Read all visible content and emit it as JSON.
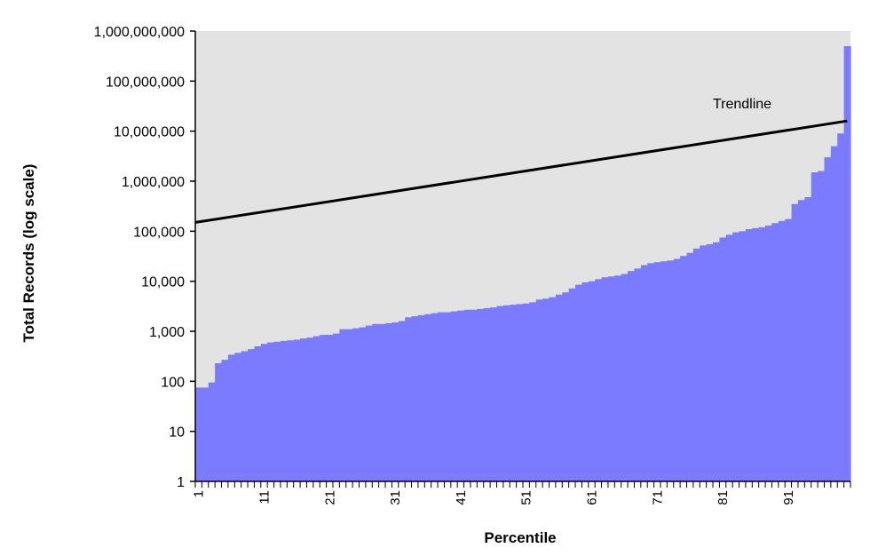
{
  "chart_data": {
    "type": "bar",
    "title": "",
    "xlabel": "Percentile",
    "ylabel": "Total Records (log scale)",
    "y_scale": "log",
    "ylim": [
      1,
      1000000000
    ],
    "y_ticks": [
      "1",
      "10",
      "100",
      "1,000",
      "10,000",
      "100,000",
      "1,000,000",
      "10,000,000",
      "100,000,000",
      "1,000,000,000"
    ],
    "x_ticks": [
      "1",
      "11",
      "21",
      "31",
      "41",
      "51",
      "61",
      "71",
      "81",
      "91"
    ],
    "grid": false,
    "legend": "none",
    "categories": [
      1,
      2,
      3,
      4,
      5,
      6,
      7,
      8,
      9,
      10,
      11,
      12,
      13,
      14,
      15,
      16,
      17,
      18,
      19,
      20,
      21,
      22,
      23,
      24,
      25,
      26,
      27,
      28,
      29,
      30,
      31,
      32,
      33,
      34,
      35,
      36,
      37,
      38,
      39,
      40,
      41,
      42,
      43,
      44,
      45,
      46,
      47,
      48,
      49,
      50,
      51,
      52,
      53,
      54,
      55,
      56,
      57,
      58,
      59,
      60,
      61,
      62,
      63,
      64,
      65,
      66,
      67,
      68,
      69,
      70,
      71,
      72,
      73,
      74,
      75,
      76,
      77,
      78,
      79,
      80,
      81,
      82,
      83,
      84,
      85,
      86,
      87,
      88,
      89,
      90,
      91,
      92,
      93,
      94,
      95,
      96,
      97,
      98,
      99,
      100
    ],
    "series": [
      {
        "values": [
          75,
          75,
          95,
          230,
          270,
          340,
          370,
          400,
          440,
          500,
          560,
          600,
          620,
          640,
          660,
          680,
          720,
          750,
          800,
          850,
          850,
          900,
          1100,
          1100,
          1150,
          1200,
          1300,
          1400,
          1400,
          1450,
          1500,
          1600,
          1900,
          2000,
          2100,
          2200,
          2300,
          2400,
          2400,
          2500,
          2600,
          2700,
          2700,
          2800,
          2900,
          3000,
          3200,
          3300,
          3400,
          3500,
          3600,
          3800,
          4300,
          4500,
          4800,
          5400,
          6000,
          7200,
          8500,
          9500,
          10000,
          11000,
          12000,
          12500,
          13000,
          14000,
          16000,
          18000,
          21000,
          23000,
          24000,
          25000,
          26000,
          28000,
          32000,
          37000,
          45000,
          52000,
          55000,
          60000,
          75000,
          85000,
          95000,
          100000,
          110000,
          115000,
          120000,
          130000,
          145000,
          160000,
          175000,
          350000,
          420000,
          480000,
          1500000,
          1600000,
          3000000,
          5000000,
          9000000,
          500000000
        ]
      }
    ],
    "colors": {
      "bars": "#7b7bff",
      "plot_background": "#e3e3e3",
      "trendline": "#000000"
    },
    "trendline": {
      "start": {
        "x": 1,
        "y": 150000
      },
      "end": {
        "x": 100,
        "y": 16000000
      },
      "label": "Trendline"
    }
  }
}
